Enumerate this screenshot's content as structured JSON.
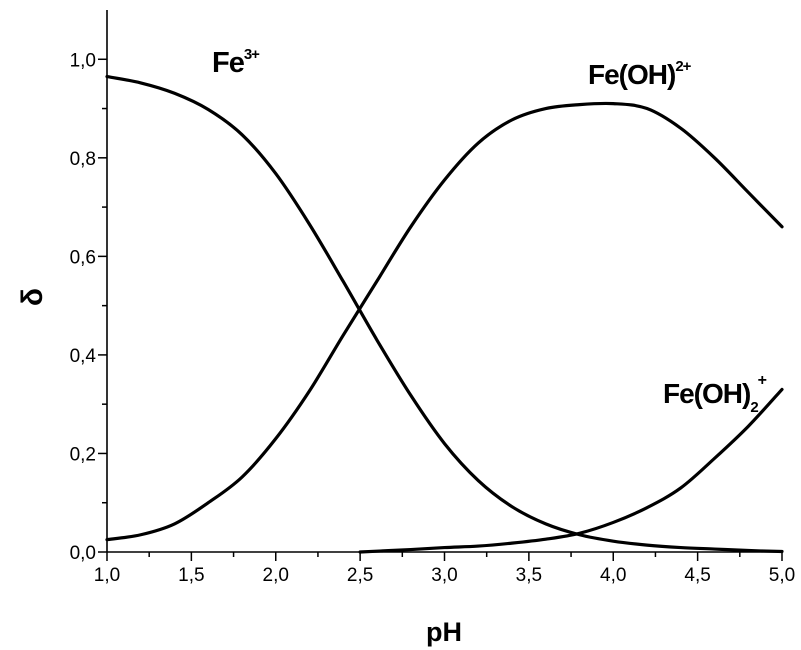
{
  "chart_data": {
    "type": "line",
    "xlabel": "pH",
    "ylabel": "δ",
    "xlim": [
      1.0,
      5.0
    ],
    "ylim": [
      0.0,
      1.1
    ],
    "grid": false,
    "x_ticks": [
      "1,0",
      "1,5",
      "2,0",
      "2,5",
      "3,0",
      "3,5",
      "4,0",
      "4,5",
      "5,0"
    ],
    "y_ticks": [
      "0,0",
      "0,2",
      "0,4",
      "0,6",
      "0,8",
      "1,0"
    ],
    "series": [
      {
        "x": [
          1.0,
          1.2,
          1.4,
          1.6,
          1.8,
          2.0,
          2.2,
          2.4,
          2.6,
          2.8,
          3.0,
          3.2,
          3.4,
          3.6,
          3.8,
          4.0,
          4.2,
          4.4,
          4.6,
          4.8,
          5.0
        ],
        "values": [
          0.965,
          0.952,
          0.931,
          0.898,
          0.847,
          0.768,
          0.665,
          0.549,
          0.43,
          0.318,
          0.22,
          0.145,
          0.092,
          0.057,
          0.035,
          0.022,
          0.014,
          0.009,
          0.006,
          0.003,
          0.001
        ]
      },
      {
        "x": [
          1.0,
          1.2,
          1.4,
          1.6,
          1.8,
          2.0,
          2.2,
          2.4,
          2.6,
          2.8,
          3.0,
          3.2,
          3.4,
          3.6,
          3.8,
          4.0,
          4.2,
          4.4,
          4.6,
          4.8,
          5.0
        ],
        "values": [
          0.025,
          0.035,
          0.057,
          0.1,
          0.152,
          0.23,
          0.327,
          0.44,
          0.55,
          0.66,
          0.755,
          0.83,
          0.877,
          0.9,
          0.908,
          0.91,
          0.9,
          0.86,
          0.8,
          0.73,
          0.66
        ]
      },
      {
        "x": [
          2.5,
          2.8,
          3.0,
          3.2,
          3.4,
          3.6,
          3.8,
          4.0,
          4.2,
          4.4,
          4.6,
          4.8,
          5.0
        ],
        "values": [
          0.0,
          0.005,
          0.009,
          0.012,
          0.018,
          0.026,
          0.038,
          0.06,
          0.09,
          0.13,
          0.19,
          0.255,
          0.33
        ]
      }
    ],
    "annotations": [
      {
        "base": "Fe",
        "sup": "3+"
      },
      {
        "base": "Fe(OH)",
        "sup": "2+"
      },
      {
        "base": "Fe(OH)",
        "sub": "2",
        "sup": "+"
      }
    ]
  }
}
